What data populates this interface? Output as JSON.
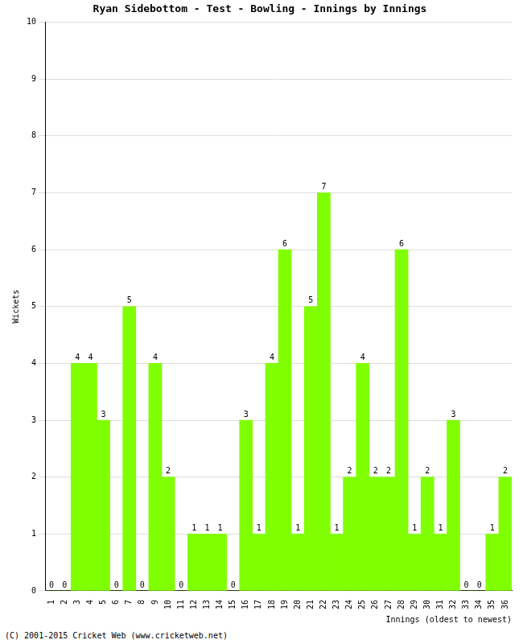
{
  "chart_data": {
    "type": "bar",
    "title": "Ryan Sidebottom - Test - Bowling - Innings by Innings",
    "x_label": "Innings (oldest to newest)",
    "y_label": "Wickets",
    "annotations": [
      "(C) 2001-2015 Cricket Web (www.cricketweb.net)"
    ],
    "categories": [
      "1",
      "2",
      "3",
      "4",
      "5",
      "6",
      "7",
      "8",
      "9",
      "10",
      "11",
      "12",
      "13",
      "14",
      "15",
      "16",
      "17",
      "18",
      "19",
      "20",
      "21",
      "22",
      "23",
      "24",
      "25",
      "26",
      "27",
      "28",
      "29",
      "30",
      "31",
      "32",
      "33",
      "34",
      "35",
      "36"
    ],
    "values": [
      0,
      0,
      4,
      4,
      3,
      0,
      5,
      0,
      4,
      2,
      0,
      1,
      1,
      1,
      0,
      3,
      1,
      4,
      6,
      1,
      5,
      7,
      1,
      2,
      4,
      2,
      2,
      6,
      1,
      2,
      1,
      3,
      0,
      0,
      1,
      2
    ],
    "color": "#80ff00",
    "ylim": [
      0,
      10
    ],
    "yticks": [
      0,
      1,
      2,
      3,
      4,
      5,
      6,
      7,
      8,
      9,
      10
    ],
    "grid": true,
    "data_labels": true
  }
}
